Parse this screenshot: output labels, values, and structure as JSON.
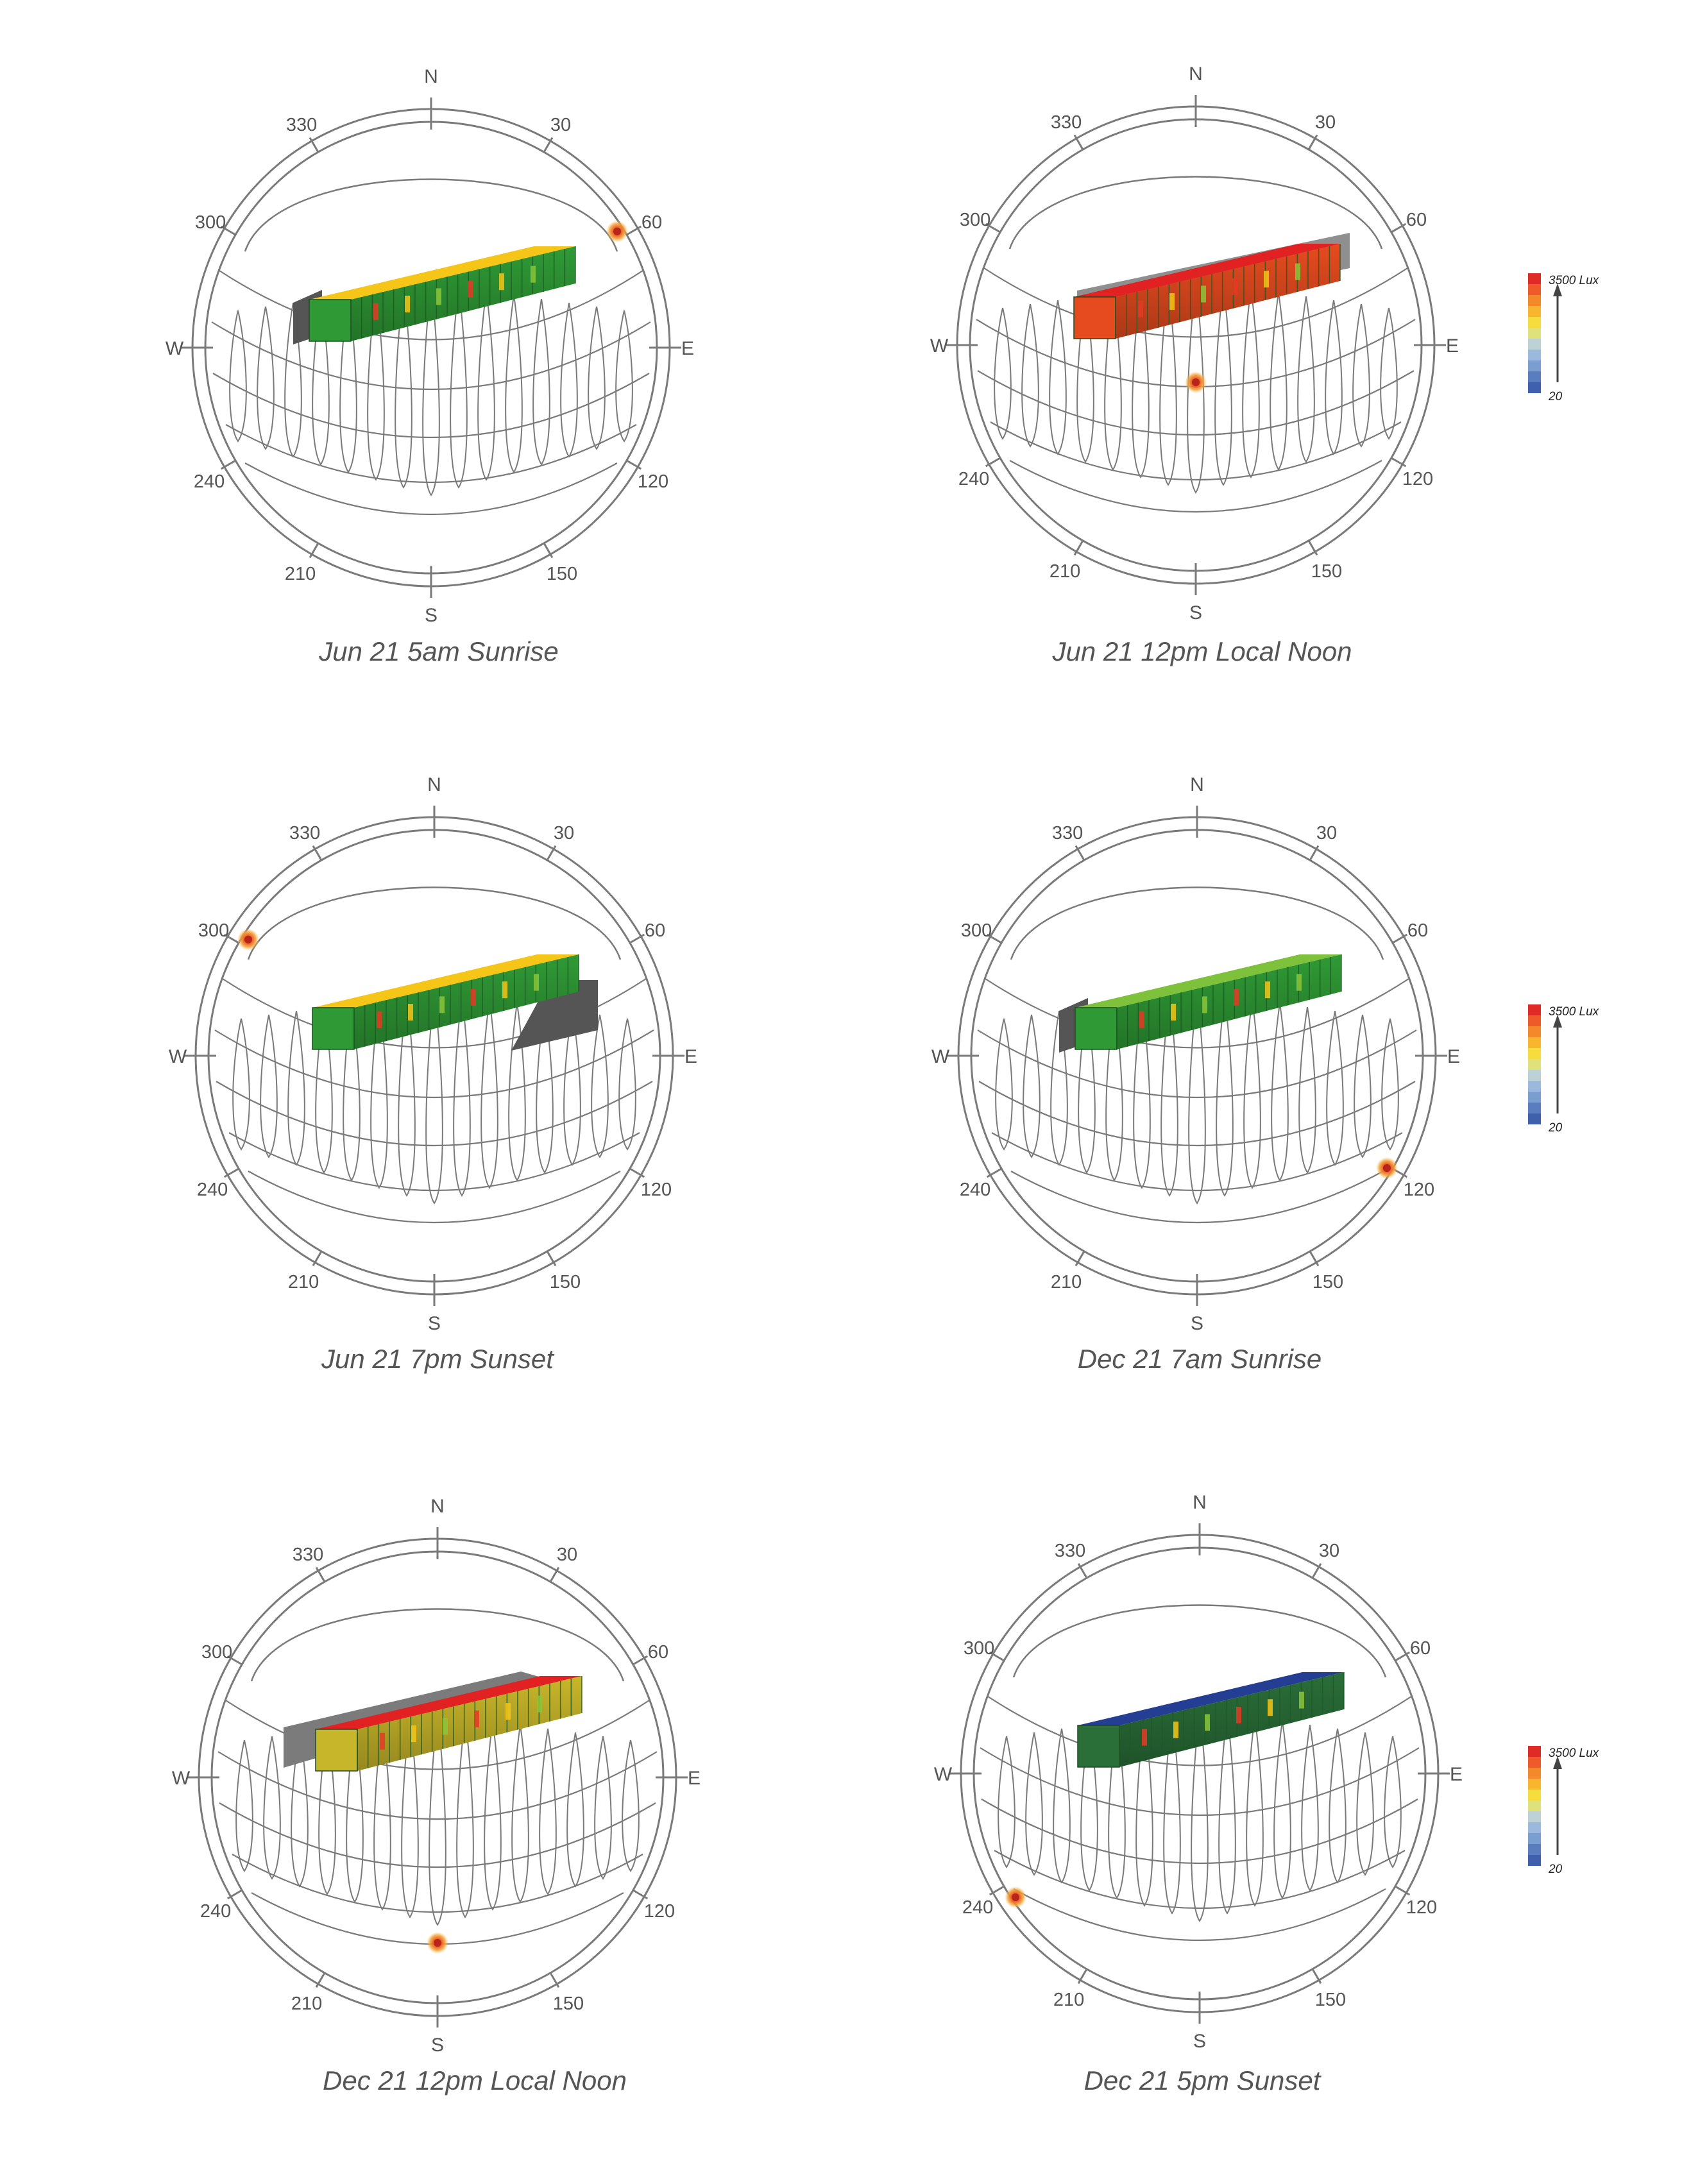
{
  "compass": {
    "north": "N",
    "east": "E",
    "south": "S",
    "west": "W",
    "bearings": [
      "30",
      "60",
      "120",
      "150",
      "210",
      "240",
      "300",
      "330"
    ]
  },
  "legend": {
    "max_label": "3500 Lux",
    "min_label": "20",
    "colors": [
      "#e02a26",
      "#ee5a2a",
      "#f4892c",
      "#f8b52d",
      "#f6dc3c",
      "#dfe17b",
      "#bcd2d6",
      "#9ab9dc",
      "#7b9ed0",
      "#5a7dc0",
      "#3f60ad"
    ]
  },
  "panels": [
    {
      "caption": "Jun 21 5am Sunrise",
      "sun_azimuth_deg": 58,
      "roof_color": "#f5c518",
      "facade_color": "#2f9a35",
      "shadow": "left"
    },
    {
      "caption": "Jun 21 12pm Local Noon",
      "sun_azimuth_deg": 180,
      "roof_color": "#e22222",
      "facade_color": "#e64b1f",
      "shadow": "back"
    },
    {
      "caption": "Jun 21 7pm Sunset",
      "sun_azimuth_deg": 302,
      "roof_color": "#f5c518",
      "facade_color": "#2f9a35",
      "shadow": "right"
    },
    {
      "caption": "Dec 21 7am Sunrise",
      "sun_azimuth_deg": 122,
      "roof_color": "#7dc23a",
      "facade_color": "#2f9a35",
      "shadow": "left"
    },
    {
      "caption": "Dec 21 12pm Local Noon",
      "sun_azimuth_deg": 180,
      "roof_color": "#e22222",
      "facade_color": "#c8b62a",
      "shadow": "back-left"
    },
    {
      "caption": "Dec 21 5pm Sunset",
      "sun_azimuth_deg": 238,
      "roof_color": "#243e94",
      "facade_color": "#2a6e38",
      "shadow": "none"
    }
  ]
}
